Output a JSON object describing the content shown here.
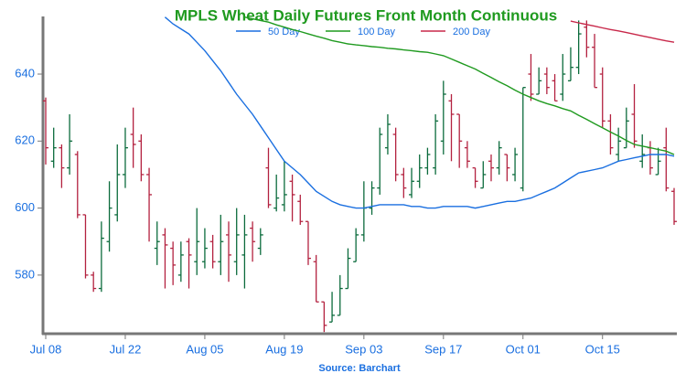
{
  "chart_data": {
    "type": "ohlc",
    "title": "MPLS Wheat Daily Futures Front Month Continuous",
    "source": "Source: Barchart",
    "categories": [
      "Jul 08",
      null,
      null,
      null,
      null,
      null,
      null,
      null,
      null,
      null,
      "Jul 22",
      null,
      null,
      null,
      null,
      null,
      null,
      null,
      null,
      null,
      "Aug 05",
      null,
      null,
      null,
      null,
      null,
      null,
      null,
      null,
      null,
      "Aug 19",
      null,
      null,
      null,
      null,
      null,
      null,
      null,
      null,
      null,
      "Sep 03",
      null,
      null,
      null,
      null,
      null,
      null,
      null,
      null,
      null,
      "Sep 17",
      null,
      null,
      null,
      null,
      null,
      null,
      null,
      null,
      null,
      "Oct 01",
      null,
      null,
      null,
      null,
      null,
      null,
      null,
      null,
      null,
      "Oct 15",
      null,
      null,
      null,
      null,
      null,
      null,
      null,
      null,
      null
    ],
    "open": [
      632,
      614,
      618,
      612,
      616,
      598,
      580,
      576,
      590,
      598,
      610,
      622,
      620,
      610,
      588,
      592,
      588,
      580,
      590,
      584,
      584,
      590,
      584,
      592,
      584,
      586,
      594,
      588,
      612,
      600,
      601,
      608,
      602,
      596,
      584,
      572,
      566,
      568,
      576,
      584,
      592,
      600,
      606,
      618,
      622,
      610,
      604,
      608,
      612,
      612,
      620,
      632,
      628,
      618,
      612,
      606,
      614,
      612,
      616,
      610,
      606,
      640,
      634,
      640,
      638,
      634,
      638,
      642,
      654,
      648,
      640,
      626,
      616,
      618,
      628,
      614,
      618,
      610,
      618,
      605
    ],
    "high": [
      633,
      624,
      619,
      628,
      617,
      598,
      581,
      596,
      608,
      619,
      624,
      630,
      622,
      612,
      596,
      594,
      590,
      590,
      591,
      600,
      594,
      592,
      598,
      596,
      600,
      598,
      596,
      594,
      618,
      610,
      614,
      610,
      604,
      596,
      586,
      572,
      575,
      580,
      588,
      594,
      608,
      608,
      624,
      628,
      624,
      612,
      612,
      616,
      618,
      628,
      638,
      634,
      628,
      620,
      612,
      614,
      616,
      620,
      616,
      618,
      636,
      646,
      642,
      642,
      640,
      646,
      648,
      656,
      656,
      652,
      642,
      628,
      624,
      630,
      637,
      622,
      620,
      618,
      624,
      606
    ],
    "low": [
      613,
      612,
      606,
      610,
      597,
      579,
      575,
      575,
      587,
      596,
      606,
      612,
      608,
      590,
      583,
      576,
      577,
      578,
      576,
      580,
      582,
      582,
      580,
      578,
      580,
      576,
      584,
      586,
      600,
      599,
      599,
      596,
      595,
      583,
      572,
      563,
      566,
      568,
      576,
      584,
      590,
      598,
      604,
      616,
      608,
      603,
      603,
      606,
      610,
      610,
      616,
      614,
      612,
      612,
      606,
      606,
      608,
      610,
      608,
      608,
      605,
      632,
      634,
      634,
      632,
      632,
      638,
      640,
      645,
      636,
      624,
      616,
      614,
      618,
      618,
      612,
      610,
      610,
      605,
      595
    ],
    "close": [
      618,
      618,
      612,
      620,
      598,
      580,
      576,
      591,
      600,
      610,
      618,
      619,
      610,
      604,
      590,
      589,
      583,
      586,
      586,
      590,
      588,
      584,
      590,
      586,
      592,
      592,
      590,
      592,
      601,
      603,
      604,
      604,
      596,
      585,
      572,
      565,
      568,
      576,
      585,
      592,
      600,
      606,
      622,
      625,
      610,
      606,
      608,
      612,
      616,
      626,
      634,
      628,
      620,
      614,
      608,
      610,
      612,
      618,
      612,
      616,
      636,
      634,
      638,
      636,
      632,
      640,
      642,
      652,
      648,
      636,
      626,
      618,
      620,
      626,
      620,
      616,
      612,
      614,
      606,
      596
    ],
    "up_color": "#0b6b3c",
    "down_color": "#b3213f",
    "series": [
      {
        "name": "50 Day",
        "color": "#1a6fe0",
        "values": [
          null,
          null,
          null,
          null,
          null,
          null,
          null,
          null,
          null,
          null,
          null,
          null,
          null,
          null,
          null,
          657,
          655,
          653.5,
          652,
          649.5,
          647,
          644,
          641,
          637.5,
          634,
          631,
          628,
          624.5,
          621,
          617.5,
          614,
          612,
          610,
          607.5,
          605,
          603.5,
          602,
          601,
          600.5,
          600,
          600,
          600.5,
          601,
          601,
          601,
          601,
          600.5,
          600.5,
          600,
          600,
          600.5,
          600.5,
          600.5,
          600.5,
          600,
          600.5,
          601,
          601.5,
          602,
          602,
          602.5,
          603,
          604,
          605,
          606,
          607.5,
          609,
          610.5,
          611,
          611.5,
          612,
          613,
          614,
          614.5,
          615,
          615.5,
          616,
          616,
          616,
          615.5
        ]
      },
      {
        "name": "100 Day",
        "color": "#1f9a1f",
        "values": [
          null,
          null,
          null,
          null,
          null,
          null,
          null,
          null,
          null,
          null,
          null,
          null,
          null,
          null,
          null,
          null,
          null,
          null,
          null,
          null,
          null,
          null,
          null,
          null,
          null,
          657,
          656.5,
          656,
          655.5,
          654.7,
          654,
          653.3,
          652.7,
          652,
          651.3,
          650.7,
          650,
          649.5,
          649,
          648.7,
          648.5,
          648.2,
          648,
          647.7,
          647.5,
          647.2,
          647,
          646.7,
          646.5,
          646,
          645.5,
          644.5,
          643.5,
          642.5,
          641.5,
          640.2,
          639,
          637.7,
          636.5,
          635.2,
          634,
          633,
          632,
          631.2,
          630.5,
          629.7,
          629,
          627.7,
          626.5,
          625.2,
          624,
          622.7,
          621.5,
          620.2,
          619,
          618.5,
          618,
          617.5,
          617,
          616
        ]
      },
      {
        "name": "200 Day",
        "color": "#c8284a",
        "values": [
          null,
          null,
          null,
          null,
          null,
          null,
          null,
          null,
          null,
          null,
          null,
          null,
          null,
          null,
          null,
          null,
          null,
          null,
          null,
          null,
          null,
          null,
          null,
          null,
          null,
          null,
          null,
          null,
          null,
          null,
          null,
          null,
          null,
          null,
          null,
          null,
          null,
          null,
          null,
          null,
          null,
          null,
          null,
          null,
          null,
          null,
          null,
          null,
          null,
          null,
          null,
          null,
          null,
          null,
          null,
          null,
          null,
          null,
          null,
          null,
          null,
          null,
          null,
          null,
          null,
          null,
          655.8,
          655.3,
          654.8,
          654.3,
          653.8,
          653.3,
          652.9,
          652.4,
          651.9,
          651.4,
          650.9,
          650.4,
          649.9,
          649.5
        ]
      }
    ],
    "ylim": [
      562.5,
      657.2
    ],
    "yticks": [
      580,
      600,
      620,
      640
    ]
  }
}
